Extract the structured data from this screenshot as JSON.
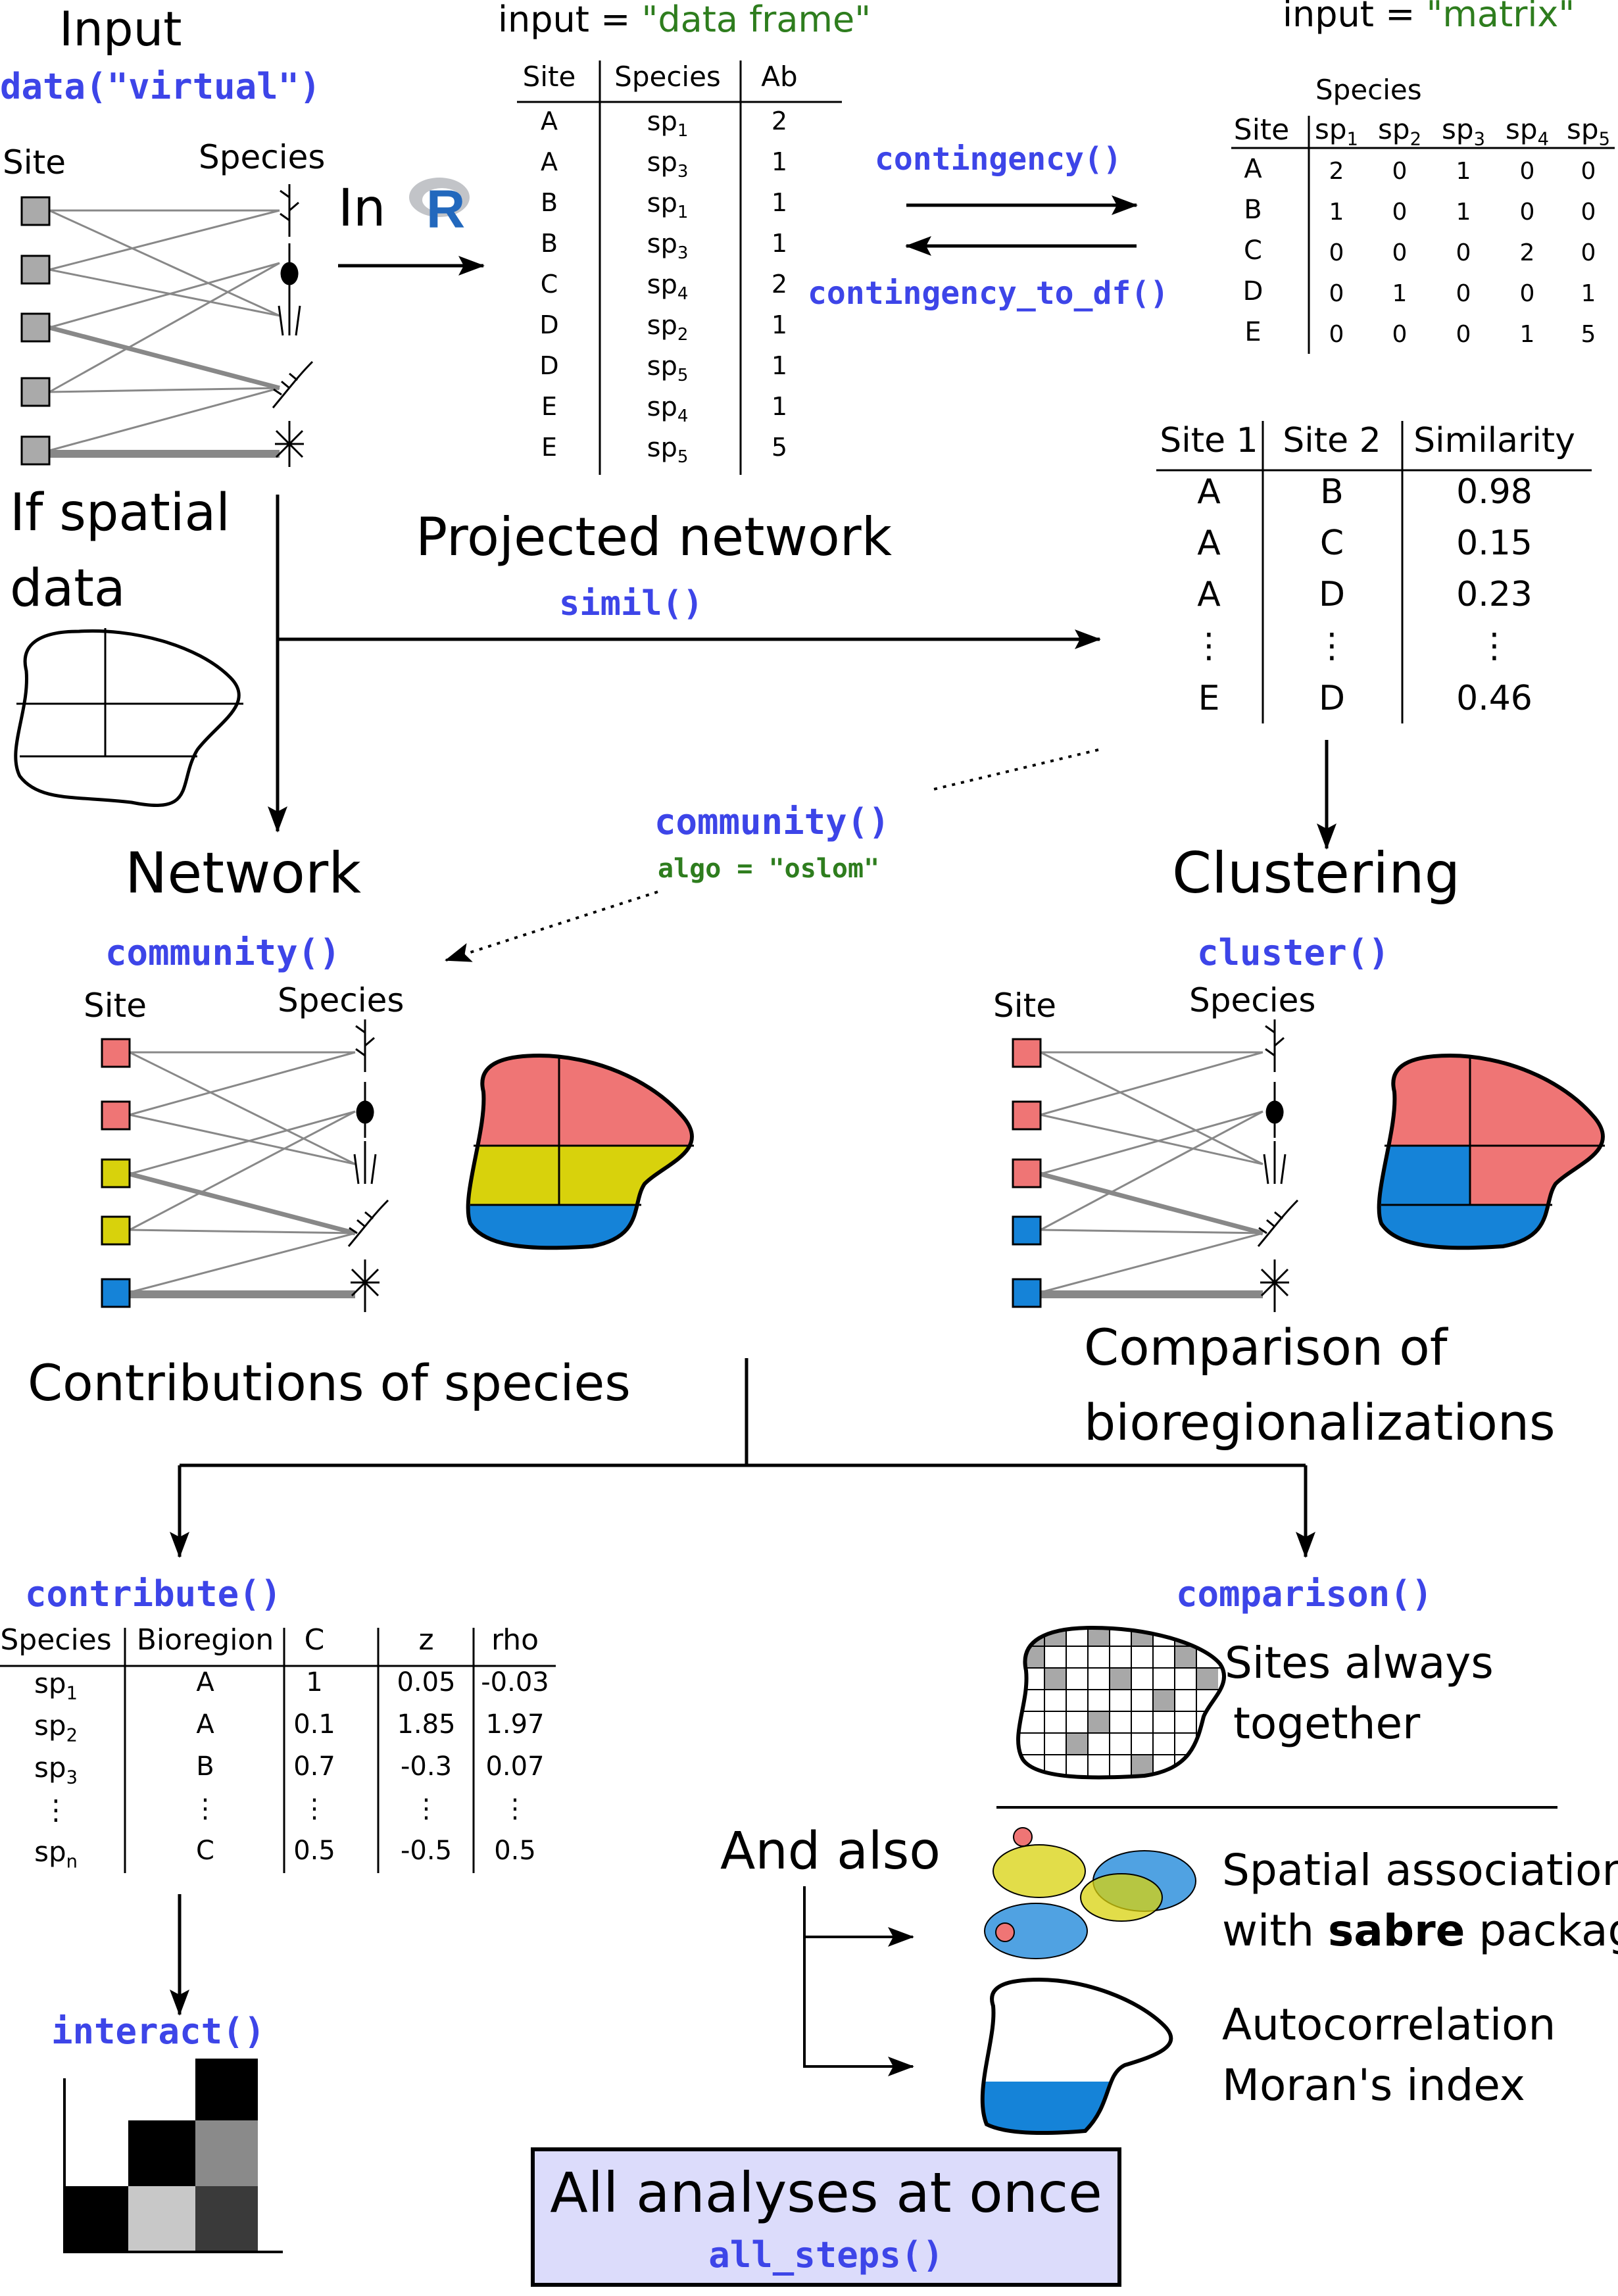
{
  "input": {
    "title": "Input",
    "fn": "data(\"virtual\")",
    "site_label": "Site",
    "species_label": "Species",
    "in_r": "In",
    "r_logo": "R",
    "spatial_line1": "If spatial",
    "spatial_line2": "data"
  },
  "data_frame": {
    "caption_prefix": "input = ",
    "caption_value": "\"data frame\"",
    "headers": [
      "Site",
      "Species",
      "Ab"
    ],
    "rows": [
      [
        "A",
        "sp1",
        "2"
      ],
      [
        "A",
        "sp3",
        "1"
      ],
      [
        "B",
        "sp1",
        "1"
      ],
      [
        "B",
        "sp3",
        "1"
      ],
      [
        "C",
        "sp4",
        "2"
      ],
      [
        "D",
        "sp2",
        "1"
      ],
      [
        "D",
        "sp5",
        "1"
      ],
      [
        "E",
        "sp4",
        "1"
      ],
      [
        "E",
        "sp5",
        "5"
      ]
    ]
  },
  "conversions": {
    "to_matrix": "contingency()",
    "to_df": "contingency_to_df()"
  },
  "matrix": {
    "caption_prefix": "input = ",
    "caption_value": "\"matrix\"",
    "species_label": "Species",
    "site_label": "Site",
    "columns": [
      "sp1",
      "sp2",
      "sp3",
      "sp4",
      "sp5"
    ],
    "rows": [
      {
        "site": "A",
        "values": [
          "2",
          "0",
          "1",
          "0",
          "0"
        ]
      },
      {
        "site": "B",
        "values": [
          "1",
          "0",
          "1",
          "0",
          "0"
        ]
      },
      {
        "site": "C",
        "values": [
          "0",
          "0",
          "0",
          "2",
          "0"
        ]
      },
      {
        "site": "D",
        "values": [
          "0",
          "1",
          "0",
          "0",
          "1"
        ]
      },
      {
        "site": "E",
        "values": [
          "0",
          "0",
          "0",
          "1",
          "5"
        ]
      }
    ]
  },
  "similarity": {
    "headers": [
      "Site 1",
      "Site 2",
      "Similarity"
    ],
    "rows": [
      [
        "A",
        "B",
        "0.98"
      ],
      [
        "A",
        "C",
        "0.15"
      ],
      [
        "A",
        "D",
        "0.23"
      ],
      [
        "⋮",
        "⋮",
        "⋮"
      ],
      [
        "E",
        "D",
        "0.46"
      ]
    ]
  },
  "projected": {
    "title": "Projected network",
    "fn": "simil()"
  },
  "oslom": {
    "fn": "community()",
    "arg": "algo = \"oslom\""
  },
  "network": {
    "title": "Network",
    "fn": "community()",
    "site_label": "Site",
    "species_label": "Species"
  },
  "clustering": {
    "title": "Clustering",
    "fn": "cluster()",
    "site_label": "Site",
    "species_label": "Species"
  },
  "contributions": {
    "title": "Contributions of species",
    "fn": "contribute()",
    "headers": [
      "Species",
      "Bioregion",
      "C",
      "z",
      "rho"
    ],
    "rows": [
      [
        "sp1",
        "A",
        "1",
        "0.05",
        "-0.03"
      ],
      [
        "sp2",
        "A",
        "0.1",
        "1.85",
        "1.97"
      ],
      [
        "sp3",
        "B",
        "0.7",
        "-0.3",
        "0.07"
      ],
      [
        "⋮",
        "⋮",
        "⋮",
        "⋮",
        "⋮"
      ],
      [
        "spn",
        "C",
        "0.5",
        "-0.5",
        "0.5"
      ]
    ],
    "interact_fn": "interact()"
  },
  "comparison": {
    "title_line1": "Comparison of",
    "title_line2": "bioregionalizations",
    "fn": "comparison()",
    "sites_line1": "Sites always",
    "sites_line2": "together"
  },
  "also": {
    "label": "And also",
    "spatial_line1": "Spatial association",
    "spatial_with": "with",
    "spatial_pkg": "sabre",
    "spatial_rest": "package",
    "auto_line1": "Autocorrelation",
    "auto_line2": "Moran's index"
  },
  "final": {
    "title": "All analyses at once",
    "fn": "all_steps()"
  },
  "colors": {
    "function_blue": "#3d45e8",
    "arg_green": "#2e7d1e",
    "bioregion_red": "#ef7575",
    "bioregion_yellow": "#d8d20c",
    "bioregion_blue": "#1583d8",
    "box_fill": "#dcdcfb"
  }
}
